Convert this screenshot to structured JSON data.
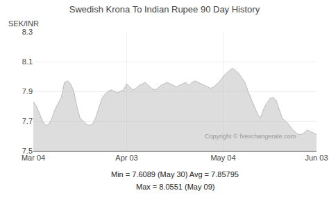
{
  "chart_data": {
    "type": "area",
    "title": "Swedish Krona To Indian Rupee 90 Day History",
    "ylabel": "SEK/INR",
    "annotations": [
      "Copyright © fxexchangerate.com",
      "Min = 7.6089 (May 30) Avg = 7.85795",
      "Max = 8.0551 (May 09)"
    ],
    "categories": [
      "Mar 04",
      null,
      null,
      null,
      null,
      null,
      null,
      null,
      null,
      null,
      null,
      null,
      null,
      null,
      null,
      null,
      null,
      null,
      null,
      null,
      null,
      null,
      null,
      null,
      null,
      null,
      null,
      null,
      null,
      null,
      "Apr 03",
      null,
      null,
      null,
      null,
      null,
      null,
      null,
      null,
      null,
      null,
      null,
      null,
      null,
      null,
      null,
      null,
      null,
      null,
      null,
      null,
      null,
      null,
      null,
      null,
      null,
      null,
      null,
      null,
      null,
      null,
      "May 04",
      null,
      null,
      null,
      null,
      null,
      null,
      null,
      null,
      null,
      null,
      null,
      null,
      null,
      null,
      null,
      null,
      null,
      null,
      null,
      null,
      null,
      null,
      null,
      null,
      null,
      null,
      null,
      null,
      null,
      "Jun 03"
    ],
    "values": [
      7.83,
      7.8,
      7.75,
      7.7,
      7.67,
      7.68,
      7.72,
      7.78,
      7.82,
      7.86,
      7.96,
      7.97,
      7.95,
      7.9,
      7.8,
      7.72,
      7.7,
      7.68,
      7.67,
      7.68,
      7.72,
      7.78,
      7.85,
      7.88,
      7.9,
      7.91,
      7.9,
      7.89,
      7.9,
      7.91,
      7.95,
      7.93,
      7.91,
      7.92,
      7.94,
      7.95,
      7.96,
      7.94,
      7.92,
      7.91,
      7.92,
      7.94,
      7.95,
      7.96,
      7.95,
      7.94,
      7.93,
      7.94,
      7.95,
      7.96,
      7.94,
      7.96,
      7.97,
      7.96,
      7.95,
      7.94,
      7.93,
      7.92,
      7.93,
      7.95,
      7.97,
      8.0,
      8.02,
      8.04,
      8.055,
      8.04,
      8.02,
      7.99,
      7.96,
      7.9,
      7.85,
      7.8,
      7.75,
      7.72,
      7.78,
      7.82,
      7.85,
      7.86,
      7.84,
      7.78,
      7.72,
      7.7,
      7.68,
      7.65,
      7.63,
      7.61,
      7.61,
      7.62,
      7.64,
      7.63,
      7.62,
      7.61
    ],
    "color": "#bbbbbb",
    "ylim": [
      7.5,
      8.3
    ],
    "yticks": [
      7.5,
      7.7,
      7.9,
      8.1,
      8.3
    ],
    "grid": true
  }
}
